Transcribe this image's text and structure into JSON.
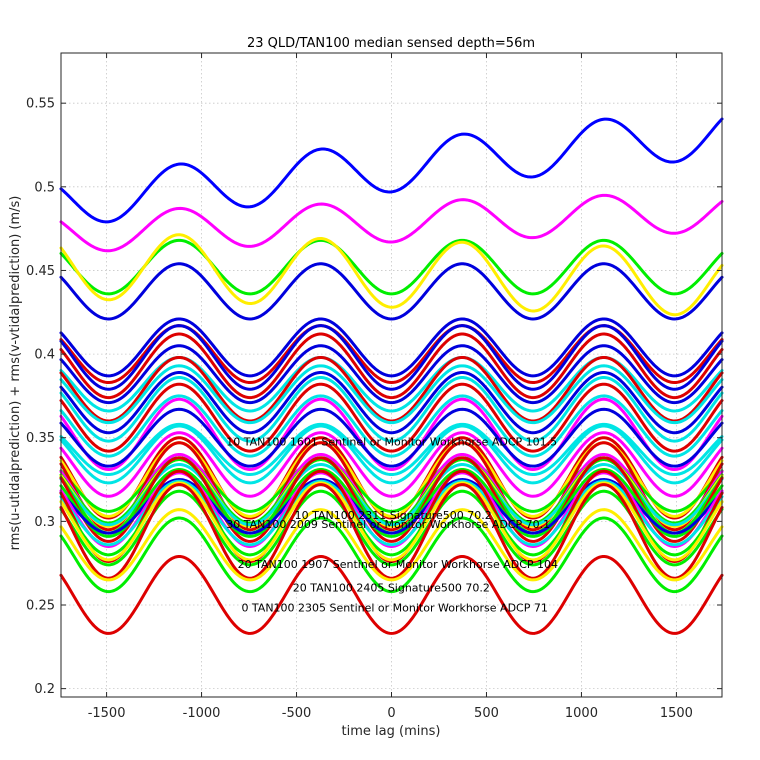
{
  "chart_data": {
    "type": "line",
    "title": "23 QLD/TAN100 median sensed depth=56m",
    "xlabel": "time lag (mins)",
    "ylabel": "rms(u-utidalprediction) + rms(v-vtidalprediction) (m/s)",
    "xlim": [
      -1740,
      1740
    ],
    "ylim": [
      0.195,
      0.58
    ],
    "xticks": [
      -1500,
      -1000,
      -500,
      0,
      500,
      1000,
      1500
    ],
    "xtick_labels": [
      "-1500",
      "-1000",
      "-500",
      "0",
      "500",
      "1000",
      "1500"
    ],
    "yticks": [
      0.2,
      0.25,
      0.3,
      0.35,
      0.4,
      0.45,
      0.5,
      0.55
    ],
    "ytick_labels": [
      "0.2",
      "0.25",
      "0.3",
      "0.35",
      "0.4",
      "0.45",
      "0.5",
      "0.55"
    ],
    "grid": true,
    "period_mins": 745,
    "series": [
      {
        "color": "#0000ff",
        "mean": 0.512,
        "amp": 0.015,
        "trend": 1.2e-05
      },
      {
        "color": "#ff00ff",
        "mean": 0.479,
        "amp": 0.012,
        "trend": 3.5e-06
      },
      {
        "color": "#00ee00",
        "mean": 0.452,
        "amp": 0.016,
        "trend": 0
      },
      {
        "color": "#ffee00",
        "mean": 0.448,
        "amp": 0.02,
        "trend": -3e-06
      },
      {
        "color": "#0000dd",
        "mean": 0.4375,
        "amp": 0.0165,
        "trend": 0
      },
      {
        "color": "#0000dd",
        "mean": 0.404,
        "amp": 0.017,
        "trend": 0
      },
      {
        "color": "#dd0000",
        "mean": 0.4,
        "amp": 0.017,
        "trend": 0
      },
      {
        "color": "#0000dd",
        "mean": 0.398,
        "amp": 0.019,
        "trend": 0
      },
      {
        "color": "#dd0000",
        "mean": 0.393,
        "amp": 0.019,
        "trend": 0
      },
      {
        "color": "#0000dd",
        "mean": 0.388,
        "amp": 0.017,
        "trend": 0
      },
      {
        "color": "#00e5e5",
        "mean": 0.382,
        "amp": 0.016,
        "trend": 0
      },
      {
        "color": "#dd0000",
        "mean": 0.379,
        "amp": 0.019,
        "trend": 0
      },
      {
        "color": "#00e5e5",
        "mean": 0.376,
        "amp": 0.017,
        "trend": 0
      },
      {
        "color": "#0000dd",
        "mean": 0.371,
        "amp": 0.018,
        "trend": 0
      },
      {
        "color": "#00e5e5",
        "mean": 0.367,
        "amp": 0.019,
        "trend": 0
      },
      {
        "color": "#dd0000",
        "mean": 0.362,
        "amp": 0.02,
        "trend": 0
      },
      {
        "color": "#00e5e5",
        "mean": 0.357,
        "amp": 0.018,
        "trend": 0
      },
      {
        "color": "#ff00ff",
        "mean": 0.352,
        "amp": 0.021,
        "trend": 0
      },
      {
        "color": "#0000dd",
        "mean": 0.35,
        "amp": 0.017,
        "trend": 0
      },
      {
        "color": "#00e5e5",
        "mean": 0.343,
        "amp": 0.015,
        "trend": 0
      },
      {
        "color": "#00e5e5",
        "mean": 0.34,
        "amp": 0.017,
        "trend": 0
      },
      {
        "color": "#ff00ff",
        "mean": 0.334,
        "amp": 0.019,
        "trend": 0
      },
      {
        "color": "#dd0000",
        "mean": 0.326,
        "amp": 0.024,
        "trend": 0
      },
      {
        "color": "#ffee00",
        "mean": 0.325,
        "amp": 0.022,
        "trend": 0
      },
      {
        "color": "#00ee00",
        "mean": 0.322,
        "amp": 0.016,
        "trend": 0
      },
      {
        "color": "#dd0000",
        "mean": 0.321,
        "amp": 0.026,
        "trend": 0
      },
      {
        "color": "#ff00ff",
        "mean": 0.319,
        "amp": 0.021,
        "trend": 0
      },
      {
        "color": "#00ee00",
        "mean": 0.318,
        "amp": 0.019,
        "trend": 0
      },
      {
        "color": "#ffee00",
        "mean": 0.317,
        "amp": 0.02,
        "trend": 0
      },
      {
        "color": "#00e5e5",
        "mean": 0.316,
        "amp": 0.018,
        "trend": 0
      },
      {
        "color": "#00ee00",
        "mean": 0.315,
        "amp": 0.022,
        "trend": 0
      },
      {
        "color": "#dd0000",
        "mean": 0.313,
        "amp": 0.025,
        "trend": 0
      },
      {
        "color": "#00ee00",
        "mean": 0.311,
        "amp": 0.02,
        "trend": 0
      },
      {
        "color": "#0000dd",
        "mean": 0.309,
        "amp": 0.016,
        "trend": 0
      },
      {
        "color": "#ff00ff",
        "mean": 0.307,
        "amp": 0.022,
        "trend": 0
      },
      {
        "color": "#00e5e5",
        "mean": 0.305,
        "amp": 0.019,
        "trend": 0
      },
      {
        "color": "#dd0000",
        "mean": 0.303,
        "amp": 0.027,
        "trend": 0
      },
      {
        "color": "#00ee00",
        "mean": 0.301,
        "amp": 0.021,
        "trend": 0
      },
      {
        "color": "#ffee00",
        "mean": 0.3,
        "amp": 0.023,
        "trend": 0
      },
      {
        "color": "#00ee00",
        "mean": 0.296,
        "amp": 0.022,
        "trend": 0
      },
      {
        "color": "#dd0000",
        "mean": 0.294,
        "amp": 0.028,
        "trend": 0
      },
      {
        "color": "#ffee00",
        "mean": 0.286,
        "amp": 0.021,
        "trend": 0
      },
      {
        "color": "#00ee00",
        "mean": 0.28,
        "amp": 0.022,
        "trend": 0
      },
      {
        "color": "#dd0000",
        "mean": 0.256,
        "amp": 0.023,
        "trend": 0
      }
    ],
    "annotations": [
      {
        "text": "10 TAN100 1601 Sentinel or Monitor Workhorse ADCP 101.5",
        "x": -870,
        "y": 0.3455,
        "anchor": "start"
      },
      {
        "text": "10 TAN100 2311 Signature500 70.2",
        "x": -510,
        "y": 0.3015,
        "anchor": "start"
      },
      {
        "text": "30 TAN100 2009 Sentinel or Monitor Workhorse ADCP 70.1",
        "x": -870,
        "y": 0.296,
        "anchor": "start"
      },
      {
        "text": "20 TAN100 1907 Sentinel or Monitor Workhorse ADCP 104",
        "x": -810,
        "y": 0.272,
        "anchor": "start"
      },
      {
        "text": "20 TAN100 2405 Signature500 70.2",
        "x": -520,
        "y": 0.258,
        "anchor": "start"
      },
      {
        "text": "0 TAN100 2305 Sentinel or Monitor Workhorse ADCP 71",
        "x": -790,
        "y": 0.246,
        "anchor": "start"
      }
    ]
  }
}
